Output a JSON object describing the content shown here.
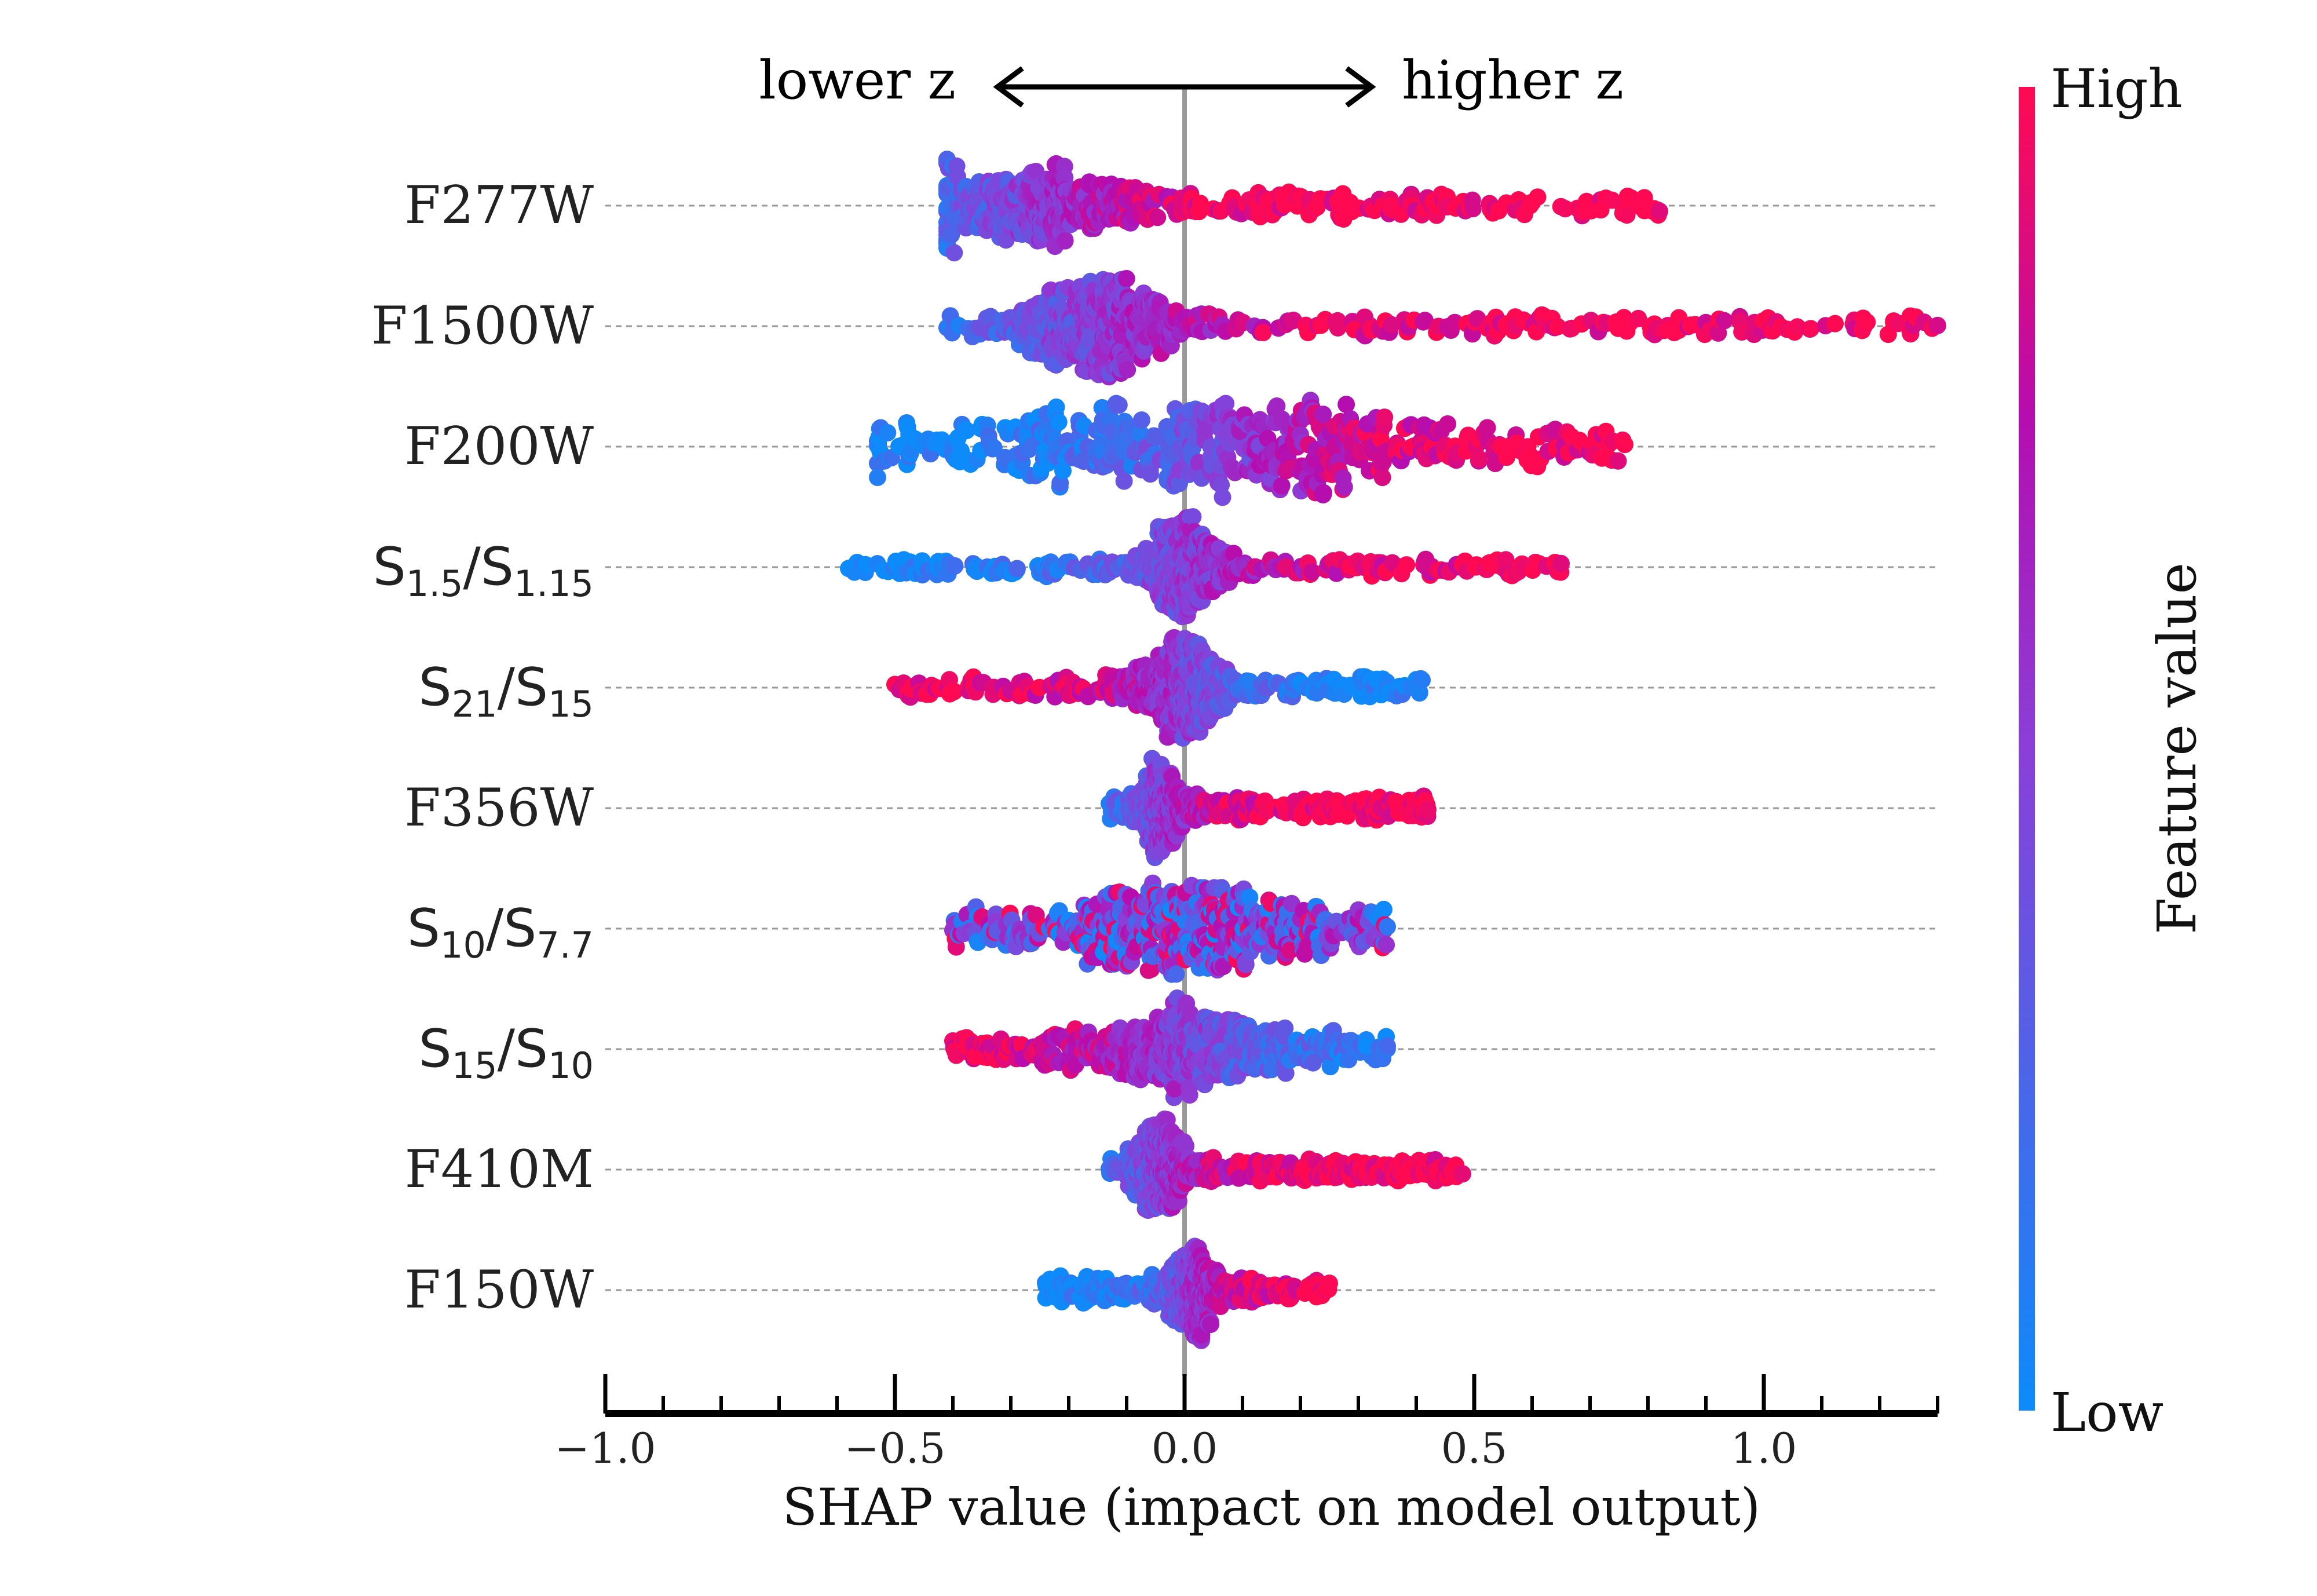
{
  "chart_data": {
    "type": "scatter",
    "subtype": "shap-beeswarm",
    "title": "",
    "xlabel": "SHAP value (impact on model output)",
    "ylabel": "",
    "xlim": [
      -1.0,
      1.3
    ],
    "x_ticks": [
      -1.0,
      -0.5,
      0.0,
      0.5,
      1.0
    ],
    "x_tick_labels": [
      "−1.0",
      "−0.5",
      "0.0",
      "0.5",
      "1.0"
    ],
    "x_minor_tick_step": 0.1,
    "direction_annotation": {
      "left": "lower z",
      "right": "higher z"
    },
    "colorbar": {
      "label": "Feature value",
      "high_label": "High",
      "low_label": "Low",
      "high_color": "#ff0a52",
      "mid_color": "#b50db0",
      "low_color": "#0d8bfa"
    },
    "features": [
      {
        "name": "F277W",
        "sub": [],
        "min": -0.41,
        "max": 0.82,
        "center": -0.27,
        "peak_width": 0.3,
        "value_slope": -1,
        "spread": 0.22
      },
      {
        "name": "F1500W",
        "sub": [],
        "min": -0.41,
        "max": 1.3,
        "center": -0.15,
        "peak_width": 0.22,
        "value_slope": -1,
        "spread": 0.3
      },
      {
        "name": "F200W",
        "sub": [],
        "min": -0.53,
        "max": 0.76,
        "center": 0.08,
        "peak_width": 0.7,
        "value_slope": -1,
        "spread": 0.35
      },
      {
        "name": "S",
        "sub": [
          "1.5",
          "/S",
          "1.15"
        ],
        "min": -0.58,
        "max": 0.65,
        "center": 0.0,
        "peak_width": 0.12,
        "value_slope": -1,
        "spread": 0.25
      },
      {
        "name": "S",
        "sub": [
          "21",
          "/S",
          "15"
        ],
        "min": -0.5,
        "max": 0.41,
        "center": 0.0,
        "peak_width": 0.12,
        "value_slope": 1,
        "spread": 0.18
      },
      {
        "name": "F356W",
        "sub": [],
        "min": -0.13,
        "max": 0.42,
        "center": -0.04,
        "peak_width": 0.08,
        "value_slope": -1,
        "spread": 0.15
      },
      {
        "name": "S",
        "sub": [
          "10",
          "/S",
          "7.7"
        ],
        "min": -0.4,
        "max": 0.35,
        "center": 0.0,
        "peak_width": 0.3,
        "value_slope": 0,
        "spread": 0.15
      },
      {
        "name": "S",
        "sub": [
          "15",
          "/S",
          "10"
        ],
        "min": -0.4,
        "max": 0.35,
        "center": 0.0,
        "peak_width": 0.3,
        "value_slope": 0.5,
        "spread": 0.15
      },
      {
        "name": "F410M",
        "sub": [],
        "min": -0.13,
        "max": 0.48,
        "center": -0.04,
        "peak_width": 0.08,
        "value_slope": -1,
        "spread": 0.15
      },
      {
        "name": "F150W",
        "sub": [],
        "min": -0.24,
        "max": 0.25,
        "center": 0.01,
        "peak_width": 0.08,
        "value_slope": -1,
        "spread": 0.12
      }
    ]
  }
}
